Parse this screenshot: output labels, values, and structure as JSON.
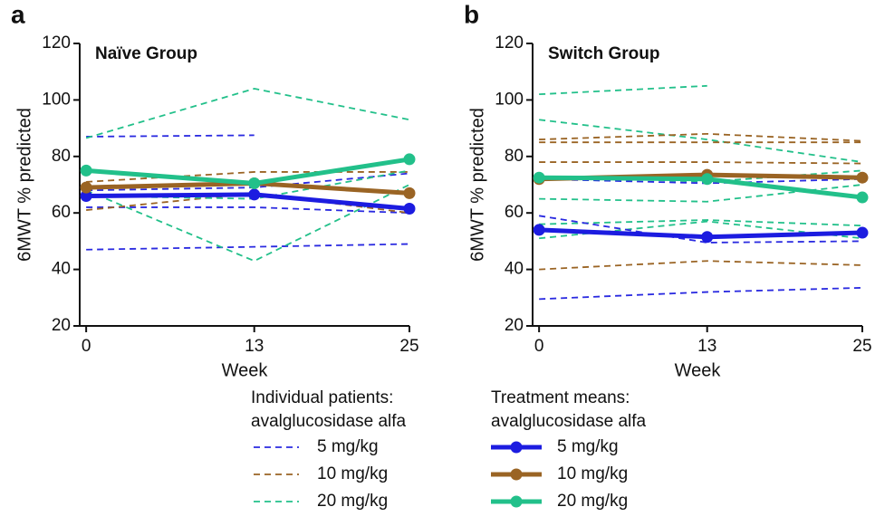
{
  "chart_data": [
    {
      "type": "line",
      "panel": "a",
      "title": "Naïve Group",
      "xlabel": "Week",
      "ylabel": "6MWT % predicted",
      "x": [
        0,
        13,
        25
      ],
      "xlim": [
        -0.5,
        25
      ],
      "xticks": [
        0,
        13,
        25
      ],
      "ylim": [
        20,
        120
      ],
      "yticks": [
        20,
        40,
        60,
        80,
        100,
        120
      ],
      "series": [
        {
          "color": "#2a2ae0",
          "style": "dashed",
          "values": [
            87,
            87.5,
            null
          ]
        },
        {
          "color": "#2a2ae0",
          "style": "dashed",
          "values": [
            62,
            62,
            60
          ]
        },
        {
          "color": "#2a2ae0",
          "style": "dashed",
          "values": [
            47,
            48,
            49
          ]
        },
        {
          "color": "#2a2ae0",
          "style": "dashed",
          "values": [
            68,
            69,
            74
          ]
        },
        {
          "color": "#9a6424",
          "style": "dashed",
          "values": [
            71,
            74.5,
            74.5
          ]
        },
        {
          "color": "#9a6424",
          "style": "dashed",
          "values": [
            61,
            67,
            60
          ]
        },
        {
          "color": "#22c08a",
          "style": "dashed",
          "values": [
            86.5,
            104,
            93
          ]
        },
        {
          "color": "#22c08a",
          "style": "dashed",
          "values": [
            68,
            43,
            70
          ]
        },
        {
          "color": "#22c08a",
          "style": "dashed",
          "values": [
            66,
            65,
            75
          ]
        },
        {
          "color": "#1c1ce0",
          "style": "solid",
          "values": [
            66,
            66.5,
            61.5
          ]
        },
        {
          "color": "#9a6424",
          "style": "solid",
          "values": [
            69,
            70.5,
            67
          ]
        },
        {
          "color": "#22c08a",
          "style": "solid",
          "values": [
            75,
            70.5,
            79
          ]
        }
      ]
    },
    {
      "type": "line",
      "panel": "b",
      "title": "Switch Group",
      "xlabel": "Week",
      "ylabel": "6MWT % predicted",
      "x": [
        0,
        13,
        25
      ],
      "xlim": [
        -0.5,
        25
      ],
      "xticks": [
        0,
        13,
        25
      ],
      "ylim": [
        20,
        120
      ],
      "yticks": [
        20,
        40,
        60,
        80,
        100,
        120
      ],
      "series": [
        {
          "color": "#22c08a",
          "style": "dashed",
          "values": [
            102,
            105,
            null
          ]
        },
        {
          "color": "#22c08a",
          "style": "dashed",
          "values": [
            93,
            86,
            78
          ]
        },
        {
          "color": "#22c08a",
          "style": "dashed",
          "values": [
            65,
            64,
            70
          ]
        },
        {
          "color": "#22c08a",
          "style": "dashed",
          "values": [
            56,
            57.5,
            55.5
          ]
        },
        {
          "color": "#22c08a",
          "style": "dashed",
          "values": [
            51,
            57,
            51
          ]
        },
        {
          "color": "#22c08a",
          "style": "dashed",
          "values": [
            73,
            71,
            75
          ]
        },
        {
          "color": "#9a6424",
          "style": "dashed",
          "values": [
            86,
            88,
            85.5
          ]
        },
        {
          "color": "#9a6424",
          "style": "dashed",
          "values": [
            85,
            85,
            85
          ]
        },
        {
          "color": "#9a6424",
          "style": "dashed",
          "values": [
            78,
            78,
            77.5
          ]
        },
        {
          "color": "#9a6424",
          "style": "dashed",
          "values": [
            40,
            43,
            41.5
          ]
        },
        {
          "color": "#2a2ae0",
          "style": "dashed",
          "values": [
            59,
            49.5,
            50
          ]
        },
        {
          "color": "#2a2ae0",
          "style": "dashed",
          "values": [
            29.5,
            32,
            33.5
          ]
        },
        {
          "color": "#2a2ae0",
          "style": "dashed",
          "values": [
            72,
            70.5,
            72
          ]
        },
        {
          "color": "#1c1ce0",
          "style": "solid",
          "values": [
            54,
            51.5,
            53
          ]
        },
        {
          "color": "#9a6424",
          "style": "solid",
          "values": [
            72,
            73.5,
            72.5
          ]
        },
        {
          "color": "#22c08a",
          "style": "solid",
          "values": [
            72.5,
            72,
            65.5
          ]
        }
      ]
    }
  ],
  "legend": {
    "individual": {
      "title": [
        "Individual patients:",
        "avalglucosidase alfa"
      ],
      "style": "dashed",
      "entries": [
        {
          "name": "5 mg/kg",
          "color": "#2a2ae0"
        },
        {
          "name": "10 mg/kg",
          "color": "#9a6424"
        },
        {
          "name": "20 mg/kg",
          "color": "#22c08a"
        }
      ]
    },
    "means": {
      "title": [
        "Treatment means:",
        "avalglucosidase alfa"
      ],
      "style": "solid",
      "entries": [
        {
          "name": "5 mg/kg",
          "color": "#1c1ce0"
        },
        {
          "name": "10 mg/kg",
          "color": "#9a6424"
        },
        {
          "name": "20 mg/kg",
          "color": "#22c08a"
        }
      ]
    }
  }
}
